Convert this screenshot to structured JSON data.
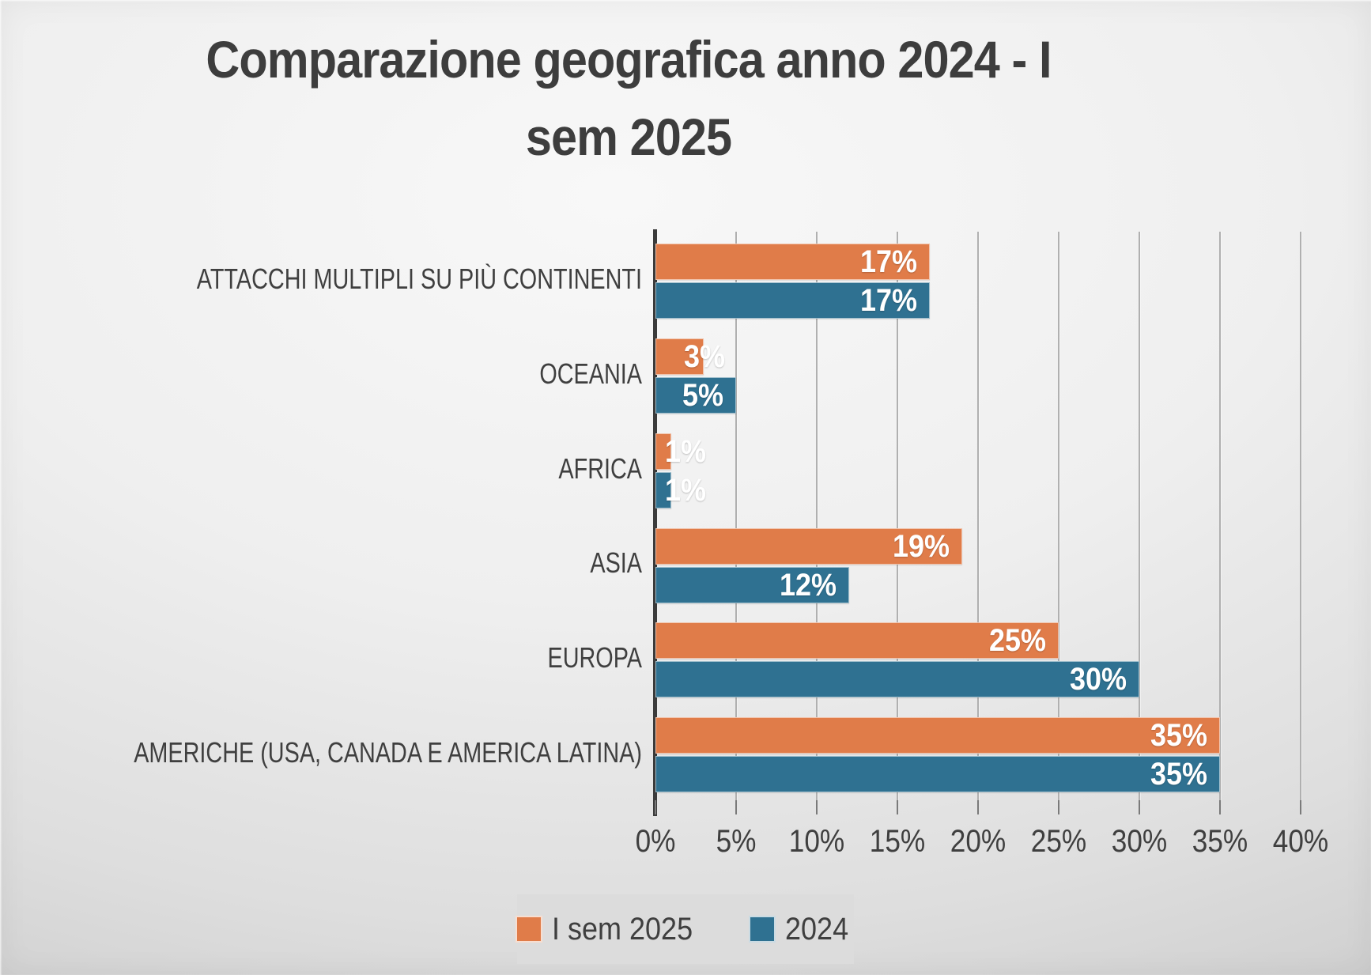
{
  "title": {
    "text": "Comparazione geografica anno 2024 - I sem 2025",
    "lines": [
      "Comparazione geografica anno 2024 - I",
      "sem 2025"
    ]
  },
  "chart_data": {
    "type": "bar",
    "orientation": "horizontal",
    "title": "Comparazione geografica anno 2024 - I sem 2025",
    "categories": [
      "ATTACCHI MULTIPLI SU PIÙ CONTINENTI",
      "OCEANIA",
      "AFRICA",
      "ASIA",
      "EUROPA",
      "AMERICHE (USA, CANADA E AMERICA LATINA)"
    ],
    "series": [
      {
        "name": "I sem 2025",
        "color": "#E07C49",
        "values": [
          17,
          3,
          1,
          19,
          25,
          35
        ]
      },
      {
        "name": "2024",
        "color": "#2F7191",
        "values": [
          17,
          5,
          1,
          12,
          30,
          35
        ]
      }
    ],
    "value_suffix": "%",
    "data_labels": [
      "17%",
      "3%",
      "1%",
      "19%",
      "25%",
      "35%",
      "17%",
      "5%",
      "1%",
      "12%",
      "30%",
      "35%"
    ],
    "x_ticks": [
      "0%",
      "5%",
      "10%",
      "15%",
      "20%",
      "25%",
      "30%",
      "35%",
      "40%"
    ],
    "xlim": [
      0,
      40
    ],
    "grid": true,
    "legend_position": "bottom"
  },
  "legend": {
    "items": [
      {
        "label": "I sem 2025",
        "color": "#E07C49"
      },
      {
        "label": "2024",
        "color": "#2F7191"
      }
    ]
  },
  "colors": {
    "title_text": "#3D3D3D",
    "axis_text": "#3F3F3F",
    "data_label_text": "#FFFFFF",
    "axis_line": "#3B3B3B",
    "gridline": "#B0B0B0",
    "tick": "#7A7A7A",
    "legend_bg": "#DCDCDC"
  }
}
